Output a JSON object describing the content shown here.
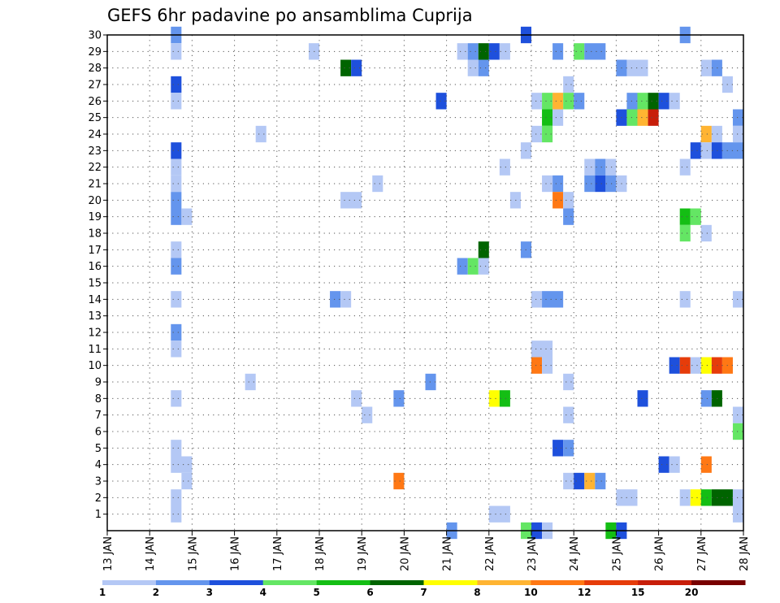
{
  "chart_data": {
    "type": "heatmap",
    "title": "GEFS 6hr padavine po ansamblima Cuprija",
    "y_ticks": [
      "1",
      "2",
      "3",
      "4",
      "5",
      "6",
      "7",
      "8",
      "9",
      "10",
      "11",
      "12",
      "13",
      "14",
      "15",
      "16",
      "17",
      "18",
      "19",
      "20",
      "21",
      "22",
      "23",
      "24",
      "25",
      "26",
      "27",
      "28",
      "29",
      "30"
    ],
    "x_ticks": [
      "13 JAN",
      "14 JAN",
      "15 JAN",
      "16 JAN",
      "17 JAN",
      "18 JAN",
      "19 JAN",
      "20 JAN",
      "21 JAN",
      "22 JAN",
      "23 JAN",
      "24 JAN",
      "25 JAN",
      "26 JAN",
      "27 JAN",
      "28 JAN"
    ],
    "ylim": [
      0,
      30
    ],
    "xlim": [
      0,
      60
    ],
    "grid": true,
    "colorbar": {
      "levels": [
        "1",
        "2",
        "3",
        "4",
        "5",
        "6",
        "7",
        "8",
        "10",
        "12",
        "15",
        "20"
      ],
      "colors": [
        "#b4c8f5",
        "#6495ed",
        "#1e50dc",
        "#64e664",
        "#14be14",
        "#006400",
        "#ffff00",
        "#ffb432",
        "#ff7814",
        "#e63c0a",
        "#c81e0a",
        "#780000"
      ]
    },
    "cells": [
      {
        "y": 30,
        "x": [
          [
            6,
            7,
            2
          ],
          [
            39,
            40,
            3
          ],
          [
            54,
            55,
            2
          ]
        ]
      },
      {
        "y": 29,
        "x": [
          [
            6,
            7,
            1
          ],
          [
            19,
            20,
            1
          ],
          [
            33,
            34,
            1
          ],
          [
            34,
            35,
            2
          ],
          [
            35,
            36,
            6
          ],
          [
            36,
            37,
            3
          ],
          [
            37,
            38,
            1
          ],
          [
            42,
            43,
            2
          ],
          [
            44,
            45,
            4
          ],
          [
            45,
            47,
            2
          ]
        ]
      },
      {
        "y": 28,
        "x": [
          [
            22,
            23,
            6
          ],
          [
            23,
            24,
            3
          ],
          [
            34,
            35,
            1
          ],
          [
            35,
            36,
            2
          ],
          [
            48,
            49,
            2
          ],
          [
            49,
            51,
            1
          ],
          [
            56,
            57,
            1
          ],
          [
            57,
            58,
            2
          ]
        ]
      },
      {
        "y": 27,
        "x": [
          [
            6,
            7,
            3
          ],
          [
            43,
            44,
            1
          ],
          [
            58,
            59,
            1
          ]
        ]
      },
      {
        "y": 26,
        "x": [
          [
            6,
            7,
            1
          ],
          [
            31,
            32,
            3
          ],
          [
            40,
            41,
            1
          ],
          [
            41,
            42,
            4
          ],
          [
            42,
            43,
            8
          ],
          [
            43,
            44,
            4
          ],
          [
            44,
            45,
            2
          ],
          [
            49,
            50,
            2
          ],
          [
            50,
            51,
            4
          ],
          [
            51,
            52,
            6
          ],
          [
            52,
            53,
            3
          ],
          [
            53,
            54,
            1
          ]
        ]
      },
      {
        "y": 25,
        "x": [
          [
            41,
            42,
            5
          ],
          [
            42,
            43,
            1
          ],
          [
            48,
            49,
            3
          ],
          [
            49,
            50,
            4
          ],
          [
            50,
            51,
            8
          ],
          [
            51,
            52,
            11
          ],
          [
            59,
            60,
            2
          ]
        ]
      },
      {
        "y": 24,
        "x": [
          [
            14,
            15,
            1
          ],
          [
            40,
            41,
            1
          ],
          [
            41,
            42,
            4
          ],
          [
            56,
            57,
            8
          ],
          [
            57,
            58,
            1
          ],
          [
            59,
            60,
            1
          ]
        ]
      },
      {
        "y": 23,
        "x": [
          [
            6,
            7,
            3
          ],
          [
            39,
            40,
            1
          ],
          [
            55,
            56,
            3
          ],
          [
            56,
            57,
            1
          ],
          [
            57,
            58,
            3
          ],
          [
            58,
            60,
            2
          ]
        ]
      },
      {
        "y": 22,
        "x": [
          [
            6,
            7,
            1
          ],
          [
            37,
            38,
            1
          ],
          [
            45,
            46,
            1
          ],
          [
            46,
            47,
            2
          ],
          [
            47,
            48,
            1
          ],
          [
            54,
            55,
            1
          ]
        ]
      },
      {
        "y": 21,
        "x": [
          [
            6,
            7,
            1
          ],
          [
            25,
            26,
            1
          ],
          [
            41,
            42,
            1
          ],
          [
            42,
            43,
            2
          ],
          [
            45,
            46,
            2
          ],
          [
            46,
            47,
            3
          ],
          [
            47,
            48,
            2
          ],
          [
            48,
            49,
            1
          ]
        ]
      },
      {
        "y": 20,
        "x": [
          [
            6,
            7,
            2
          ],
          [
            22,
            24,
            1
          ],
          [
            38,
            39,
            1
          ],
          [
            42,
            43,
            9
          ],
          [
            43,
            44,
            1
          ]
        ]
      },
      {
        "y": 19,
        "x": [
          [
            6,
            7,
            2
          ],
          [
            7,
            8,
            1
          ],
          [
            43,
            44,
            2
          ],
          [
            54,
            55,
            5
          ],
          [
            55,
            56,
            4
          ]
        ]
      },
      {
        "y": 18,
        "x": [
          [
            54,
            55,
            4
          ],
          [
            56,
            57,
            1
          ]
        ]
      },
      {
        "y": 17,
        "x": [
          [
            6,
            7,
            1
          ],
          [
            35,
            36,
            6
          ],
          [
            39,
            40,
            2
          ]
        ]
      },
      {
        "y": 16,
        "x": [
          [
            6,
            7,
            2
          ],
          [
            33,
            34,
            2
          ],
          [
            34,
            35,
            4
          ],
          [
            35,
            36,
            1
          ]
        ]
      },
      {
        "y": 14,
        "x": [
          [
            6,
            7,
            1
          ],
          [
            21,
            22,
            2
          ],
          [
            22,
            23,
            1
          ],
          [
            40,
            41,
            1
          ],
          [
            41,
            43,
            2
          ],
          [
            54,
            55,
            1
          ],
          [
            59,
            60,
            1
          ]
        ]
      },
      {
        "y": 12,
        "x": [
          [
            6,
            7,
            2
          ]
        ]
      },
      {
        "y": 11,
        "x": [
          [
            6,
            7,
            1
          ],
          [
            40,
            42,
            1
          ]
        ]
      },
      {
        "y": 10,
        "x": [
          [
            40,
            41,
            9
          ],
          [
            41,
            42,
            1
          ],
          [
            53,
            54,
            3
          ],
          [
            54,
            55,
            10
          ],
          [
            55,
            56,
            1
          ],
          [
            56,
            57,
            7
          ],
          [
            57,
            58,
            10
          ],
          [
            58,
            59,
            9
          ]
        ]
      },
      {
        "y": 9,
        "x": [
          [
            13,
            14,
            1
          ],
          [
            30,
            31,
            2
          ],
          [
            43,
            44,
            1
          ]
        ]
      },
      {
        "y": 8,
        "x": [
          [
            6,
            7,
            1
          ],
          [
            23,
            24,
            1
          ],
          [
            27,
            28,
            2
          ],
          [
            36,
            37,
            7
          ],
          [
            37,
            38,
            5
          ],
          [
            50,
            51,
            3
          ],
          [
            56,
            57,
            2
          ],
          [
            57,
            58,
            6
          ]
        ]
      },
      {
        "y": 7,
        "x": [
          [
            24,
            25,
            1
          ],
          [
            43,
            44,
            1
          ],
          [
            59,
            60,
            1
          ]
        ]
      },
      {
        "y": 6,
        "x": [
          [
            59,
            60,
            4
          ]
        ]
      },
      {
        "y": 5,
        "x": [
          [
            6,
            7,
            1
          ],
          [
            42,
            43,
            3
          ],
          [
            43,
            44,
            2
          ]
        ]
      },
      {
        "y": 4,
        "x": [
          [
            6,
            8,
            1
          ],
          [
            52,
            53,
            3
          ],
          [
            53,
            54,
            1
          ],
          [
            56,
            57,
            9
          ]
        ]
      },
      {
        "y": 3,
        "x": [
          [
            7,
            8,
            1
          ],
          [
            27,
            28,
            9
          ],
          [
            43,
            44,
            1
          ],
          [
            44,
            45,
            3
          ],
          [
            45,
            46,
            8
          ],
          [
            46,
            47,
            2
          ]
        ]
      },
      {
        "y": 2,
        "x": [
          [
            6,
            7,
            1
          ],
          [
            48,
            50,
            1
          ],
          [
            54,
            55,
            1
          ],
          [
            55,
            56,
            7
          ],
          [
            56,
            57,
            5
          ],
          [
            57,
            59,
            6
          ],
          [
            59,
            60,
            1
          ]
        ]
      },
      {
        "y": 1,
        "x": [
          [
            6,
            7,
            1
          ],
          [
            36,
            38,
            1
          ],
          [
            59,
            60,
            1
          ]
        ]
      },
      {
        "y": 0,
        "x": [
          [
            32,
            33,
            2
          ],
          [
            39,
            40,
            4
          ],
          [
            40,
            41,
            3
          ],
          [
            41,
            42,
            1
          ],
          [
            47,
            48,
            5
          ],
          [
            48,
            49,
            3
          ]
        ]
      }
    ]
  }
}
